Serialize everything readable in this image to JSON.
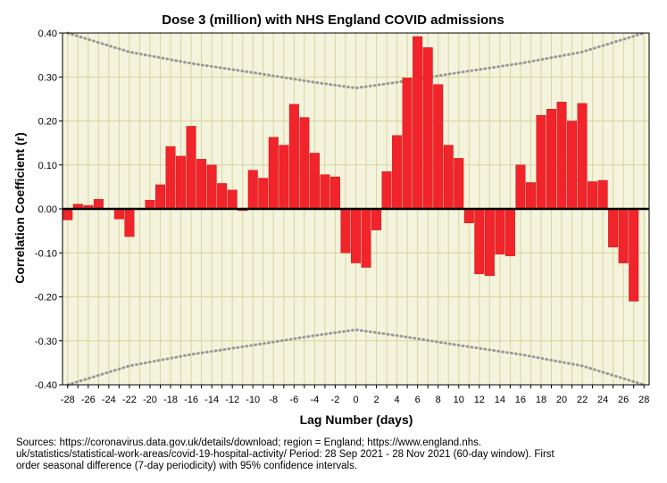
{
  "chart_data": {
    "type": "bar",
    "title": "Dose 3 (million) with NHS England COVID admissions",
    "xlabel": "Lag Number (days)",
    "ylabel": "Correlation Coefficient (r)",
    "ylim": [
      -0.4,
      0.4
    ],
    "yticks": [
      "0.40",
      "0.30",
      "0.20",
      "0.10",
      "0.00",
      "-0.10",
      "-0.20",
      "-0.30",
      "-0.40"
    ],
    "xticks": [
      "-28",
      "-26",
      "-24",
      "-22",
      "-20",
      "-18",
      "-16",
      "-14",
      "-12",
      "-10",
      "-8",
      "-6",
      "-4",
      "-2",
      "0",
      "2",
      "4",
      "6",
      "8",
      "10",
      "12",
      "14",
      "16",
      "18",
      "20",
      "22",
      "24",
      "26",
      "28"
    ],
    "lags": [
      -28,
      -27,
      -26,
      -25,
      -24,
      -23,
      -22,
      -21,
      -20,
      -19,
      -18,
      -17,
      -16,
      -15,
      -14,
      -13,
      -12,
      -11,
      -10,
      -9,
      -8,
      -7,
      -6,
      -5,
      -4,
      -3,
      -2,
      -1,
      0,
      1,
      2,
      3,
      4,
      5,
      6,
      7,
      8,
      9,
      10,
      11,
      12,
      13,
      14,
      15,
      16,
      17,
      18,
      19,
      20,
      21,
      22,
      23,
      24,
      25,
      26,
      27,
      28
    ],
    "values": [
      -0.025,
      0.011,
      0.008,
      0.022,
      0.0,
      -0.023,
      -0.063,
      0.0,
      0.02,
      0.055,
      0.142,
      0.12,
      0.188,
      0.113,
      0.1,
      0.058,
      0.043,
      -0.004,
      0.088,
      0.07,
      0.163,
      0.145,
      0.238,
      0.208,
      0.127,
      0.078,
      0.073,
      -0.1,
      -0.123,
      -0.133,
      -0.048,
      0.085,
      0.167,
      0.298,
      0.392,
      0.367,
      0.283,
      0.145,
      0.115,
      -0.032,
      -0.148,
      -0.152,
      -0.103,
      -0.107,
      0.1,
      0.06,
      0.213,
      0.227,
      0.243,
      0.2,
      0.24,
      0.062,
      0.065,
      -0.087,
      -0.123,
      -0.21,
      0.0
    ],
    "confidence_band": {
      "label": "95% confidence intervals",
      "lags": [
        -28,
        -22,
        -16,
        -10,
        -4,
        0,
        4,
        10,
        16,
        22,
        28
      ],
      "upper": [
        0.4,
        0.357,
        0.331,
        0.31,
        0.288,
        0.275,
        0.288,
        0.31,
        0.331,
        0.357,
        0.4
      ],
      "lower": [
        -0.4,
        -0.357,
        -0.331,
        -0.31,
        -0.288,
        -0.275,
        -0.288,
        -0.31,
        -0.331,
        -0.357,
        -0.4
      ]
    },
    "bar_color": "#f0242a",
    "plot_background": "#f4f3dd",
    "gridline_color": "#d8d59d",
    "band_color": "#999999"
  },
  "sources_text": "Sources: https://coronavirus.data.gov.uk/details/download; region = England; https://www.england.nhs.\nuk/statistics/statistical-work-areas/covid-19-hospital-activity/ Period: 28 Sep 2021 - 28 Nov 2021 (60-day window). First\norder seasonal difference (7-day periodicity) with 95% confidence intervals."
}
